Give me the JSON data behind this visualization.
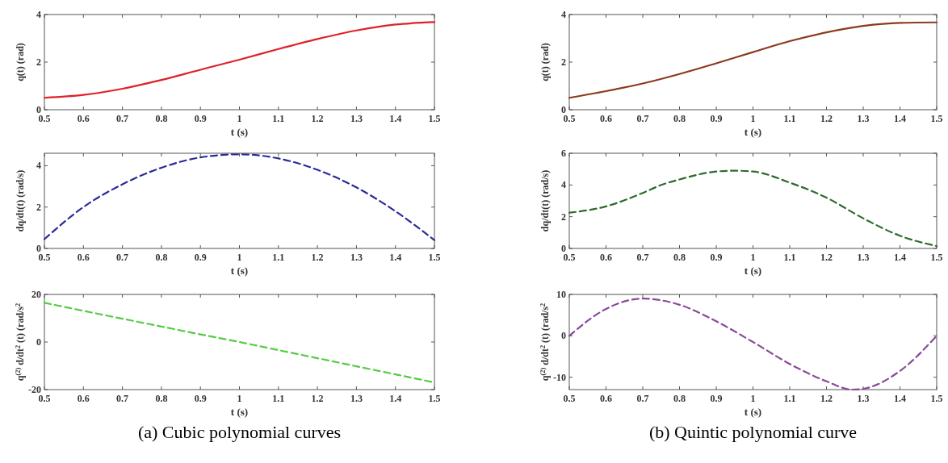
{
  "chart_data": [
    {
      "type": "line",
      "xlabel": "t (s)",
      "ylabel": "q(t) (rad)",
      "xlim": [
        0.5,
        1.5
      ],
      "xticks": [
        0.5,
        0.6,
        0.7,
        0.8,
        0.9,
        1,
        1.1,
        1.2,
        1.3,
        1.4,
        1.5
      ],
      "ylim": [
        0,
        4
      ],
      "yticks": [
        0,
        2,
        4
      ],
      "line_style": "solid",
      "grid": false,
      "x": [
        0.5,
        0.6,
        0.7,
        0.8,
        0.9,
        1.0,
        1.1,
        1.2,
        1.3,
        1.4,
        1.5
      ],
      "series": [
        {
          "color": "#e0202a",
          "values": [
            0.5,
            0.62,
            0.88,
            1.25,
            1.68,
            2.1,
            2.55,
            2.97,
            3.33,
            3.58,
            3.68
          ]
        }
      ]
    },
    {
      "type": "line",
      "xlabel": "t (s)",
      "ylabel": "dq/dt(t) (rad/s)",
      "xlim": [
        0.5,
        1.5
      ],
      "xticks": [
        0.5,
        0.6,
        0.7,
        0.8,
        0.9,
        1,
        1.1,
        1.2,
        1.3,
        1.4,
        1.5
      ],
      "ylim": [
        0,
        4.6
      ],
      "yticks": [
        0,
        2,
        4
      ],
      "line_style": "dashed",
      "grid": false,
      "x": [
        0.5,
        0.6,
        0.7,
        0.8,
        0.9,
        1.0,
        1.1,
        1.2,
        1.3,
        1.4,
        1.5
      ],
      "series": [
        {
          "color": "#2b2b9a",
          "values": [
            0.45,
            2.0,
            3.1,
            3.9,
            4.4,
            4.55,
            4.35,
            3.8,
            2.95,
            1.8,
            0.4
          ]
        }
      ]
    },
    {
      "type": "line",
      "xlabel": "t (s)",
      "ylabel": "q$^{(2)}$ d/dt$^{2}$ (t) (rad/s$^{2}$",
      "xlim": [
        0.5,
        1.5
      ],
      "xticks": [
        0.5,
        0.6,
        0.7,
        0.8,
        0.9,
        1,
        1.1,
        1.2,
        1.3,
        1.4,
        1.5
      ],
      "ylim": [
        -20,
        20
      ],
      "yticks": [
        -20,
        0,
        20
      ],
      "line_style": "dashed",
      "grid": false,
      "x": [
        0.5,
        0.6,
        0.7,
        0.8,
        0.9,
        1.0,
        1.1,
        1.2,
        1.3,
        1.4,
        1.5
      ],
      "annotations": [
        "(a) Cubic polynomial curves"
      ],
      "series": [
        {
          "color": "#55cc44",
          "values": [
            16.5,
            13.1,
            9.8,
            6.5,
            3.2,
            0,
            -3.4,
            -6.8,
            -10.2,
            -13.6,
            -17
          ]
        }
      ]
    },
    {
      "type": "line",
      "xlabel": "t (s)",
      "ylabel": "q(t) (rad)",
      "xlim": [
        0.5,
        1.5
      ],
      "xticks": [
        0.5,
        0.6,
        0.7,
        0.8,
        0.9,
        1,
        1.1,
        1.2,
        1.3,
        1.4,
        1.5
      ],
      "ylim": [
        0,
        4
      ],
      "yticks": [
        0,
        2,
        4
      ],
      "line_style": "solid",
      "grid": false,
      "x": [
        0.5,
        0.6,
        0.7,
        0.8,
        0.9,
        1.0,
        1.1,
        1.2,
        1.3,
        1.4,
        1.5
      ],
      "series": [
        {
          "color": "#8b3a1e",
          "values": [
            0.5,
            0.78,
            1.1,
            1.5,
            1.95,
            2.42,
            2.88,
            3.25,
            3.52,
            3.65,
            3.67
          ]
        }
      ]
    },
    {
      "type": "line",
      "xlabel": "t (s)",
      "ylabel": "dq/dt(t) (rad/s)",
      "xlim": [
        0.5,
        1.5
      ],
      "xticks": [
        0.5,
        0.6,
        0.7,
        0.8,
        0.9,
        1,
        1.1,
        1.2,
        1.3,
        1.4,
        1.5
      ],
      "ylim": [
        0,
        6
      ],
      "yticks": [
        0,
        2,
        4,
        6
      ],
      "line_style": "dashed",
      "grid": false,
      "x": [
        0.5,
        0.6,
        0.7,
        0.75,
        0.8,
        0.9,
        0.95,
        1.0,
        1.1,
        1.2,
        1.3,
        1.4,
        1.5
      ],
      "series": [
        {
          "color": "#2e6b2e",
          "values": [
            2.25,
            2.65,
            3.5,
            4.0,
            4.35,
            4.85,
            4.9,
            4.85,
            4.15,
            3.2,
            1.9,
            0.8,
            0.15
          ]
        }
      ]
    },
    {
      "type": "line",
      "xlabel": "t (s)",
      "ylabel": "q$^{(2)}$ d/dt$^{2}$ (t) (rad/s$^{2}$",
      "xlim": [
        0.5,
        1.5
      ],
      "xticks": [
        0.5,
        0.6,
        0.7,
        0.8,
        0.9,
        1,
        1.1,
        1.2,
        1.3,
        1.4,
        1.5
      ],
      "ylim": [
        -13,
        10
      ],
      "yticks": [
        -10,
        0,
        10
      ],
      "line_style": "dashed",
      "grid": false,
      "x": [
        0.5,
        0.6,
        0.7,
        0.8,
        0.9,
        1.0,
        1.1,
        1.2,
        1.27,
        1.3,
        1.4,
        1.5
      ],
      "annotations": [
        "(b) Quintic polynomial curve"
      ],
      "series": [
        {
          "color": "#8a4a9a",
          "values": [
            0,
            6.5,
            9.0,
            7.5,
            3.5,
            -1.5,
            -6.8,
            -11,
            -13,
            -12.8,
            -8.5,
            0
          ]
        }
      ]
    }
  ]
}
